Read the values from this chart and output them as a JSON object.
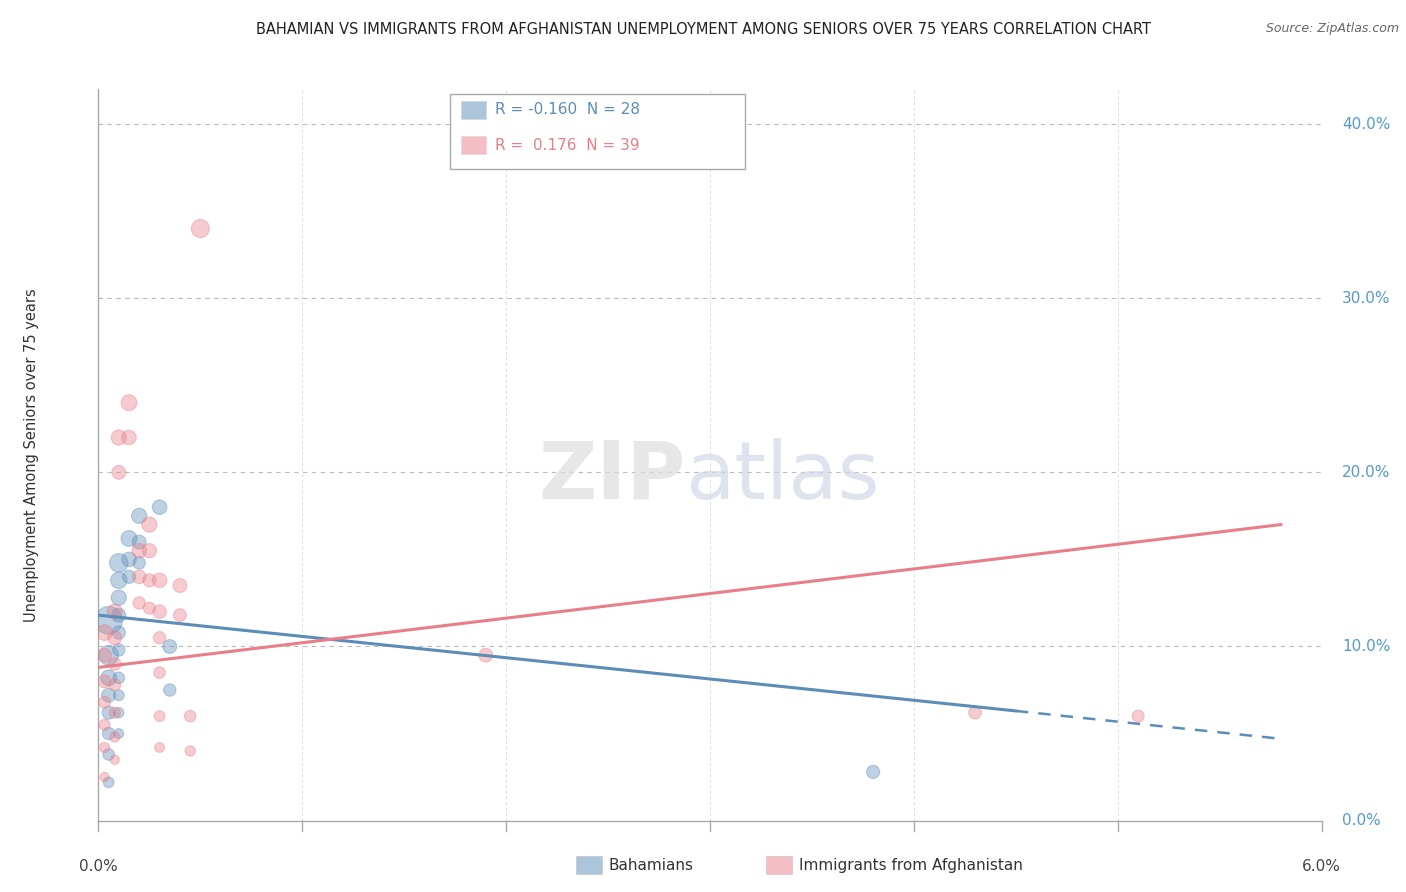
{
  "title": "BAHAMIAN VS IMMIGRANTS FROM AFGHANISTAN UNEMPLOYMENT AMONG SENIORS OVER 75 YEARS CORRELATION CHART",
  "source": "Source: ZipAtlas.com",
  "ylabel": "Unemployment Among Seniors over 75 years",
  "legend_blue_text": "R = -0.160  N = 28",
  "legend_pink_text": "R =  0.176  N = 39",
  "legend_label_blue": "Bahamians",
  "legend_label_pink": "Immigrants from Afghanistan",
  "background_color": "#ffffff",
  "blue_color": "#5b8db8",
  "pink_color": "#e87e8a",
  "blue_scatter": [
    [
      0.0005,
      0.115
    ],
    [
      0.0005,
      0.095
    ],
    [
      0.0005,
      0.082
    ],
    [
      0.0005,
      0.072
    ],
    [
      0.0005,
      0.062
    ],
    [
      0.0005,
      0.05
    ],
    [
      0.0005,
      0.038
    ],
    [
      0.0005,
      0.022
    ],
    [
      0.001,
      0.148
    ],
    [
      0.001,
      0.138
    ],
    [
      0.001,
      0.128
    ],
    [
      0.001,
      0.118
    ],
    [
      0.001,
      0.108
    ],
    [
      0.001,
      0.098
    ],
    [
      0.001,
      0.082
    ],
    [
      0.001,
      0.072
    ],
    [
      0.001,
      0.062
    ],
    [
      0.001,
      0.05
    ],
    [
      0.0015,
      0.162
    ],
    [
      0.0015,
      0.15
    ],
    [
      0.0015,
      0.14
    ],
    [
      0.002,
      0.175
    ],
    [
      0.002,
      0.16
    ],
    [
      0.002,
      0.148
    ],
    [
      0.003,
      0.18
    ],
    [
      0.0035,
      0.1
    ],
    [
      0.0035,
      0.075
    ],
    [
      0.038,
      0.028
    ]
  ],
  "blue_sizes": [
    400,
    200,
    130,
    100,
    90,
    80,
    70,
    60,
    180,
    140,
    120,
    100,
    90,
    80,
    70,
    60,
    55,
    50,
    130,
    110,
    90,
    120,
    100,
    80,
    110,
    100,
    80,
    90
  ],
  "pink_scatter": [
    [
      0.0003,
      0.108
    ],
    [
      0.0003,
      0.095
    ],
    [
      0.0003,
      0.08
    ],
    [
      0.0003,
      0.068
    ],
    [
      0.0003,
      0.055
    ],
    [
      0.0003,
      0.042
    ],
    [
      0.0003,
      0.025
    ],
    [
      0.0008,
      0.12
    ],
    [
      0.0008,
      0.105
    ],
    [
      0.0008,
      0.09
    ],
    [
      0.0008,
      0.078
    ],
    [
      0.0008,
      0.062
    ],
    [
      0.0008,
      0.048
    ],
    [
      0.0008,
      0.035
    ],
    [
      0.001,
      0.22
    ],
    [
      0.001,
      0.2
    ],
    [
      0.0015,
      0.24
    ],
    [
      0.0015,
      0.22
    ],
    [
      0.002,
      0.155
    ],
    [
      0.002,
      0.14
    ],
    [
      0.002,
      0.125
    ],
    [
      0.0025,
      0.17
    ],
    [
      0.0025,
      0.155
    ],
    [
      0.0025,
      0.138
    ],
    [
      0.0025,
      0.122
    ],
    [
      0.003,
      0.138
    ],
    [
      0.003,
      0.12
    ],
    [
      0.003,
      0.105
    ],
    [
      0.003,
      0.085
    ],
    [
      0.003,
      0.06
    ],
    [
      0.003,
      0.042
    ],
    [
      0.004,
      0.135
    ],
    [
      0.004,
      0.118
    ],
    [
      0.0045,
      0.06
    ],
    [
      0.0045,
      0.04
    ],
    [
      0.005,
      0.34
    ],
    [
      0.019,
      0.095
    ],
    [
      0.043,
      0.062
    ],
    [
      0.051,
      0.06
    ]
  ],
  "pink_sizes": [
    130,
    100,
    90,
    75,
    65,
    55,
    45,
    120,
    100,
    85,
    75,
    65,
    55,
    45,
    120,
    100,
    130,
    110,
    110,
    95,
    80,
    120,
    105,
    90,
    75,
    110,
    95,
    80,
    70,
    60,
    50,
    100,
    85,
    70,
    55,
    170,
    100,
    85,
    75
  ],
  "blue_line": [
    [
      0.0,
      0.118
    ],
    [
      0.045,
      0.063
    ]
  ],
  "blue_dashed_line": [
    [
      0.045,
      0.063
    ],
    [
      0.058,
      0.047
    ]
  ],
  "pink_line": [
    [
      0.0,
      0.088
    ],
    [
      0.058,
      0.17
    ]
  ],
  "xlim": [
    0.0,
    0.06
  ],
  "ylim": [
    0.0,
    0.42
  ],
  "ytick_vals": [
    0.0,
    0.1,
    0.2,
    0.3,
    0.4
  ],
  "ytick_labels": [
    "0.0%",
    "10.0%",
    "20.0%",
    "30.0%",
    "40.0%"
  ],
  "xtick_labels_show": [
    "0.0%",
    "6.0%"
  ],
  "xtick_show_vals": [
    0.0,
    0.06
  ]
}
